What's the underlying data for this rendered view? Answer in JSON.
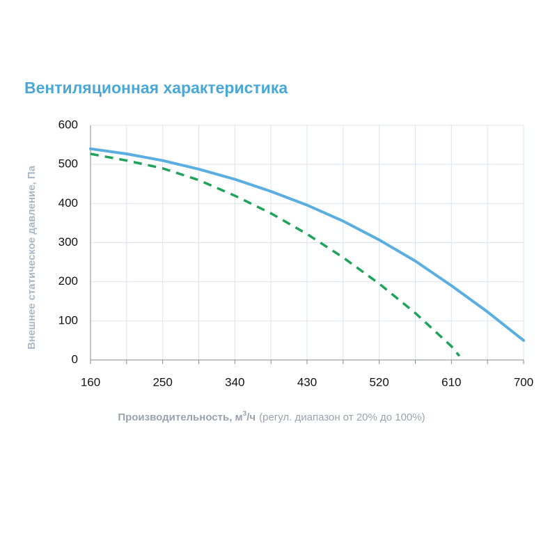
{
  "chart_data": {
    "type": "line",
    "title": "Вентиляционная характеристика",
    "ylabel": "Внешнее статическое давление, Па",
    "xlabel": {
      "main": "Производительность, м",
      "sup": "3",
      "tail": "/ч",
      "note": "(регул. диапазон от 20% до 100%)"
    },
    "xlim": [
      160,
      700
    ],
    "ylim": [
      0,
      600
    ],
    "xticks": [
      160,
      250,
      340,
      430,
      520,
      610,
      700
    ],
    "x_minor_ticks": [
      205,
      295,
      385,
      475,
      565,
      655
    ],
    "yticks": [
      0,
      100,
      200,
      300,
      400,
      500,
      600
    ],
    "grid": true,
    "series": [
      {
        "color": "#5aaee0",
        "style": "solid",
        "x": [
          160,
          205,
          250,
          295,
          340,
          385,
          430,
          475,
          520,
          565,
          610,
          655,
          700
        ],
        "values": [
          540,
          527,
          510,
          488,
          462,
          431,
          396,
          355,
          307,
          253,
          190,
          123,
          50
        ]
      },
      {
        "color": "#1fa35a",
        "style": "dashed",
        "x": [
          160,
          205,
          250,
          295,
          340,
          385,
          430,
          475,
          520,
          565,
          610,
          620
        ],
        "values": [
          527,
          510,
          490,
          460,
          420,
          375,
          322,
          262,
          195,
          120,
          35,
          10
        ]
      }
    ]
  }
}
